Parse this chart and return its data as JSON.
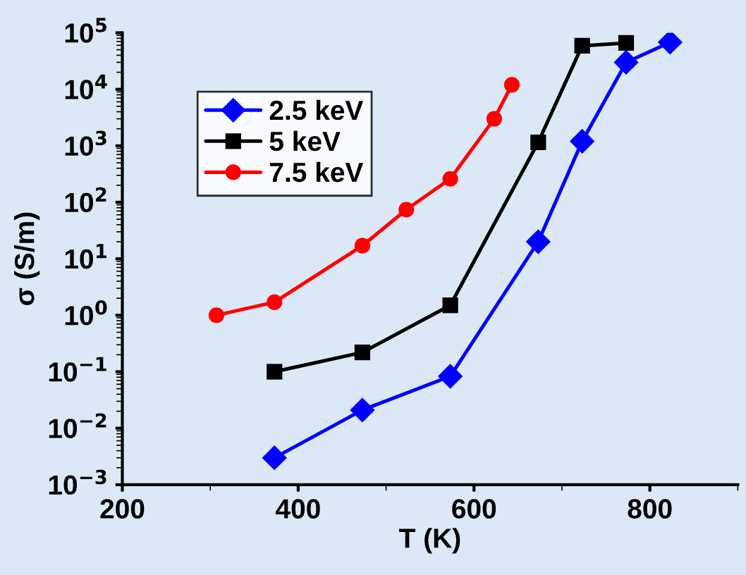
{
  "chart_data": {
    "type": "line",
    "xlabel": "T (K)",
    "ylabel": "σ (S/m)",
    "log": "y",
    "legend": "top left",
    "line_style": "solid",
    "grid": false,
    "xlim": [
      200,
      900
    ],
    "xticks": [
      200,
      400,
      600,
      800
    ],
    "ylim": [
      0.001,
      100000
    ],
    "yticks": [
      {
        "value": 0.001,
        "label": "10$^{−3}$"
      },
      {
        "value": 0.01,
        "label": "10$^{−2}$"
      },
      {
        "value": 0.1,
        "label": "10$^{−1}$"
      },
      {
        "value": 1,
        "label": "10$^{0}$"
      },
      {
        "value": 10,
        "label": "10$^{1}$"
      },
      {
        "value": 100,
        "label": "10$^{2}$"
      },
      {
        "value": 1000,
        "label": "10$^{3}$"
      },
      {
        "value": 10000,
        "label": "10$^{4}$"
      },
      {
        "value": 100000,
        "label": "10$^{5}$"
      }
    ],
    "series": [
      {
        "name": "2.5 keV",
        "color": "#0000ff",
        "marker": "diamond",
        "x": [
          373,
          473,
          573,
          673,
          723,
          773,
          823
        ],
        "values": [
          0.003,
          0.021,
          0.083,
          20,
          1200,
          30000,
          68000
        ]
      },
      {
        "name": "5 keV",
        "color": "#000000",
        "marker": "square",
        "x": [
          373,
          473,
          573,
          673,
          723,
          773
        ],
        "values": [
          0.1,
          0.22,
          1.5,
          1150,
          59000,
          66000
        ]
      },
      {
        "name": "7.5 keV",
        "color": "#ff0000",
        "marker": "circle",
        "x": [
          307,
          373,
          473,
          523,
          573,
          623,
          643
        ],
        "values": [
          1.0,
          1.7,
          17,
          74,
          260,
          3000,
          12000
        ]
      }
    ]
  }
}
